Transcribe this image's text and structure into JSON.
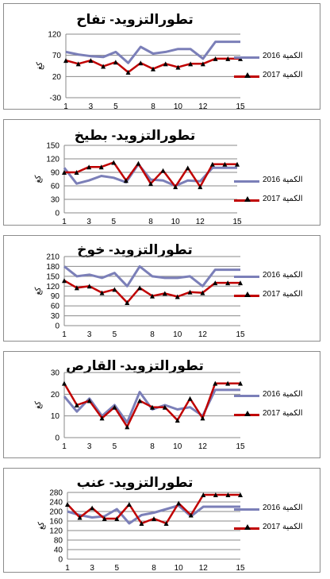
{
  "legend": {
    "s1": "2016 الكمية",
    "s2": "2017 الكمية"
  },
  "colors": {
    "s1": "#7b7fb8",
    "s2": "#c00000",
    "marker": "#000000"
  },
  "chart_data": [
    {
      "type": "line",
      "title": "تطورالتزويد- تفاح",
      "ylabel": "كغ",
      "x": [
        1,
        2,
        3,
        4,
        5,
        6,
        7,
        8,
        9,
        10,
        11,
        12,
        13,
        14,
        15
      ],
      "xticks": [
        1,
        3,
        5,
        8,
        10,
        12,
        15
      ],
      "yticks": [
        -30,
        20,
        70,
        120
      ],
      "ylim": [
        -30,
        120
      ],
      "series": [
        {
          "name": "2016 الكمية",
          "values": [
            78,
            72,
            68,
            66,
            78,
            52,
            90,
            74,
            78,
            85,
            85,
            62,
            102,
            102,
            102
          ]
        },
        {
          "name": "2017 الكمية",
          "values": [
            58,
            50,
            58,
            44,
            54,
            30,
            52,
            38,
            50,
            42,
            50,
            50,
            62,
            62,
            62
          ]
        }
      ]
    },
    {
      "type": "line",
      "title": "تطورالتزويد- بطيخ",
      "ylabel": "كغ",
      "x": [
        1,
        2,
        3,
        4,
        5,
        6,
        7,
        8,
        9,
        10,
        11,
        12,
        13,
        14,
        15
      ],
      "xticks": [
        1,
        3,
        5,
        8,
        10,
        12,
        15
      ],
      "yticks": [
        0,
        30,
        60,
        90,
        120,
        150
      ],
      "ylim": [
        0,
        150
      ],
      "series": [
        {
          "name": "2016 الكمية",
          "values": [
            100,
            65,
            72,
            82,
            78,
            68,
            108,
            74,
            72,
            60,
            72,
            70,
            100,
            100,
            100
          ]
        },
        {
          "name": "2017 الكمية",
          "values": [
            90,
            90,
            102,
            102,
            112,
            72,
            110,
            65,
            94,
            58,
            100,
            58,
            108,
            108,
            108
          ]
        }
      ]
    },
    {
      "type": "line",
      "title": "تطورالتزويد- خوخ",
      "ylabel": "كغ",
      "x": [
        1,
        2,
        3,
        4,
        5,
        6,
        7,
        8,
        9,
        10,
        11,
        12,
        13,
        14,
        15
      ],
      "xticks": [
        1,
        3,
        5,
        8,
        10,
        12,
        15
      ],
      "yticks": [
        0,
        30,
        60,
        90,
        120,
        150,
        180,
        210
      ],
      "ylim": [
        0,
        210
      ],
      "series": [
        {
          "name": "2016 الكمية",
          "values": [
            180,
            150,
            155,
            145,
            160,
            120,
            180,
            150,
            145,
            145,
            150,
            120,
            170,
            170,
            170
          ]
        },
        {
          "name": "2017 الكمية",
          "values": [
            137,
            115,
            120,
            100,
            110,
            70,
            115,
            90,
            98,
            88,
            102,
            100,
            130,
            130,
            130
          ]
        }
      ]
    },
    {
      "type": "line",
      "title": "تطورالتزويد- القارص",
      "ylabel": "كغ",
      "x": [
        1,
        2,
        3,
        4,
        5,
        6,
        7,
        8,
        9,
        10,
        11,
        12,
        13,
        14,
        15
      ],
      "xticks": [
        1,
        3,
        5,
        8,
        10,
        12,
        15
      ],
      "yticks": [
        0,
        10,
        20,
        30
      ],
      "ylim": [
        0,
        30
      ],
      "series": [
        {
          "name": "2016 الكمية",
          "values": [
            19,
            12,
            18,
            10,
            15,
            7,
            21,
            13,
            15,
            13,
            14,
            10,
            22,
            22,
            22
          ]
        },
        {
          "name": "2017 الكمية",
          "values": [
            25,
            15,
            17,
            9,
            14,
            5,
            17,
            14,
            14,
            8,
            18,
            9,
            25,
            25,
            25
          ]
        }
      ]
    },
    {
      "type": "line",
      "title": "تطورالتزويد- عنب",
      "ylabel": "كغ",
      "x": [
        1,
        2,
        3,
        4,
        5,
        6,
        7,
        8,
        9,
        10,
        11,
        12,
        13,
        14,
        15
      ],
      "xticks": [
        1,
        3,
        5,
        8,
        10,
        12,
        15
      ],
      "yticks": [
        0,
        40,
        80,
        120,
        160,
        200,
        240,
        280
      ],
      "ylim": [
        0,
        280
      ],
      "series": [
        {
          "name": "2016 الكمية",
          "values": [
            200,
            185,
            175,
            180,
            210,
            150,
            185,
            195,
            210,
            225,
            180,
            220,
            220,
            220,
            220
          ]
        },
        {
          "name": "2017 الكمية",
          "values": [
            230,
            175,
            215,
            170,
            170,
            230,
            150,
            170,
            150,
            235,
            185,
            270,
            270,
            270,
            270
          ]
        }
      ]
    }
  ]
}
